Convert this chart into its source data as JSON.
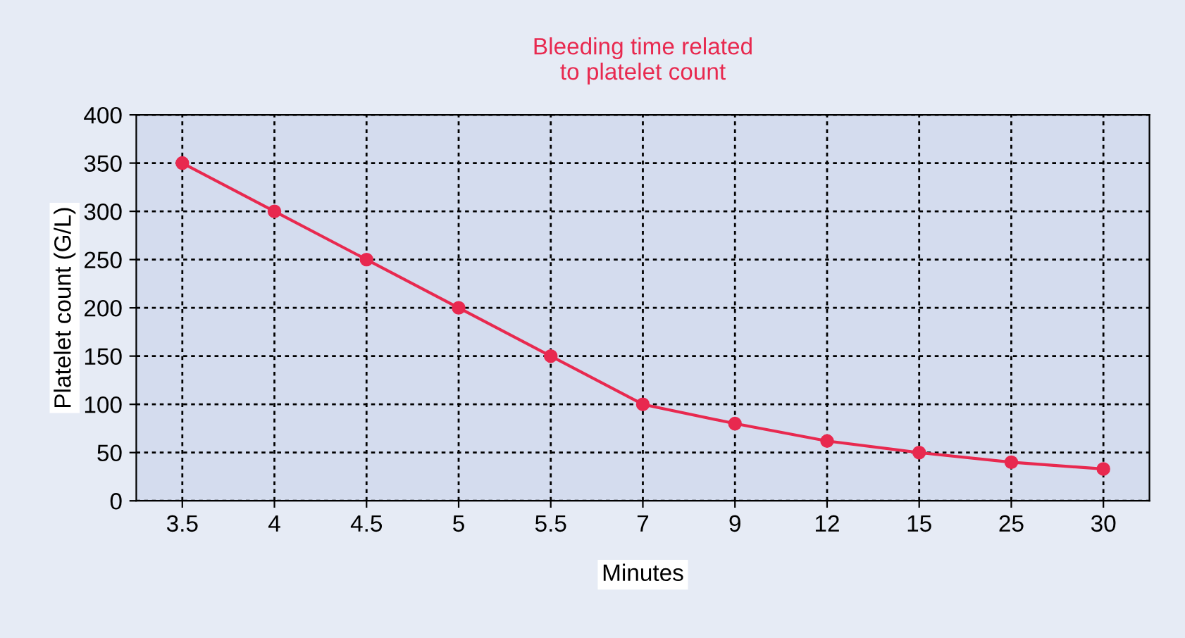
{
  "chart_data": {
    "type": "line",
    "title": "Bleeding time related\nto platelet count",
    "xlabel": "Minutes",
    "ylabel": "Platelet count (G/L)",
    "categories": [
      "3.5",
      "4",
      "4.5",
      "5",
      "5.5",
      "7",
      "9",
      "12",
      "15",
      "25",
      "30"
    ],
    "series": [
      {
        "color": "#e8294f",
        "values": [
          350,
          300,
          250,
          200,
          150,
          100,
          80,
          62,
          50,
          40,
          33
        ]
      }
    ],
    "ylim": [
      0,
      400
    ],
    "yticks": [
      0,
      50,
      100,
      150,
      200,
      250,
      300,
      350,
      400
    ],
    "grid": true,
    "marker": "circle",
    "line_style": "solid"
  }
}
